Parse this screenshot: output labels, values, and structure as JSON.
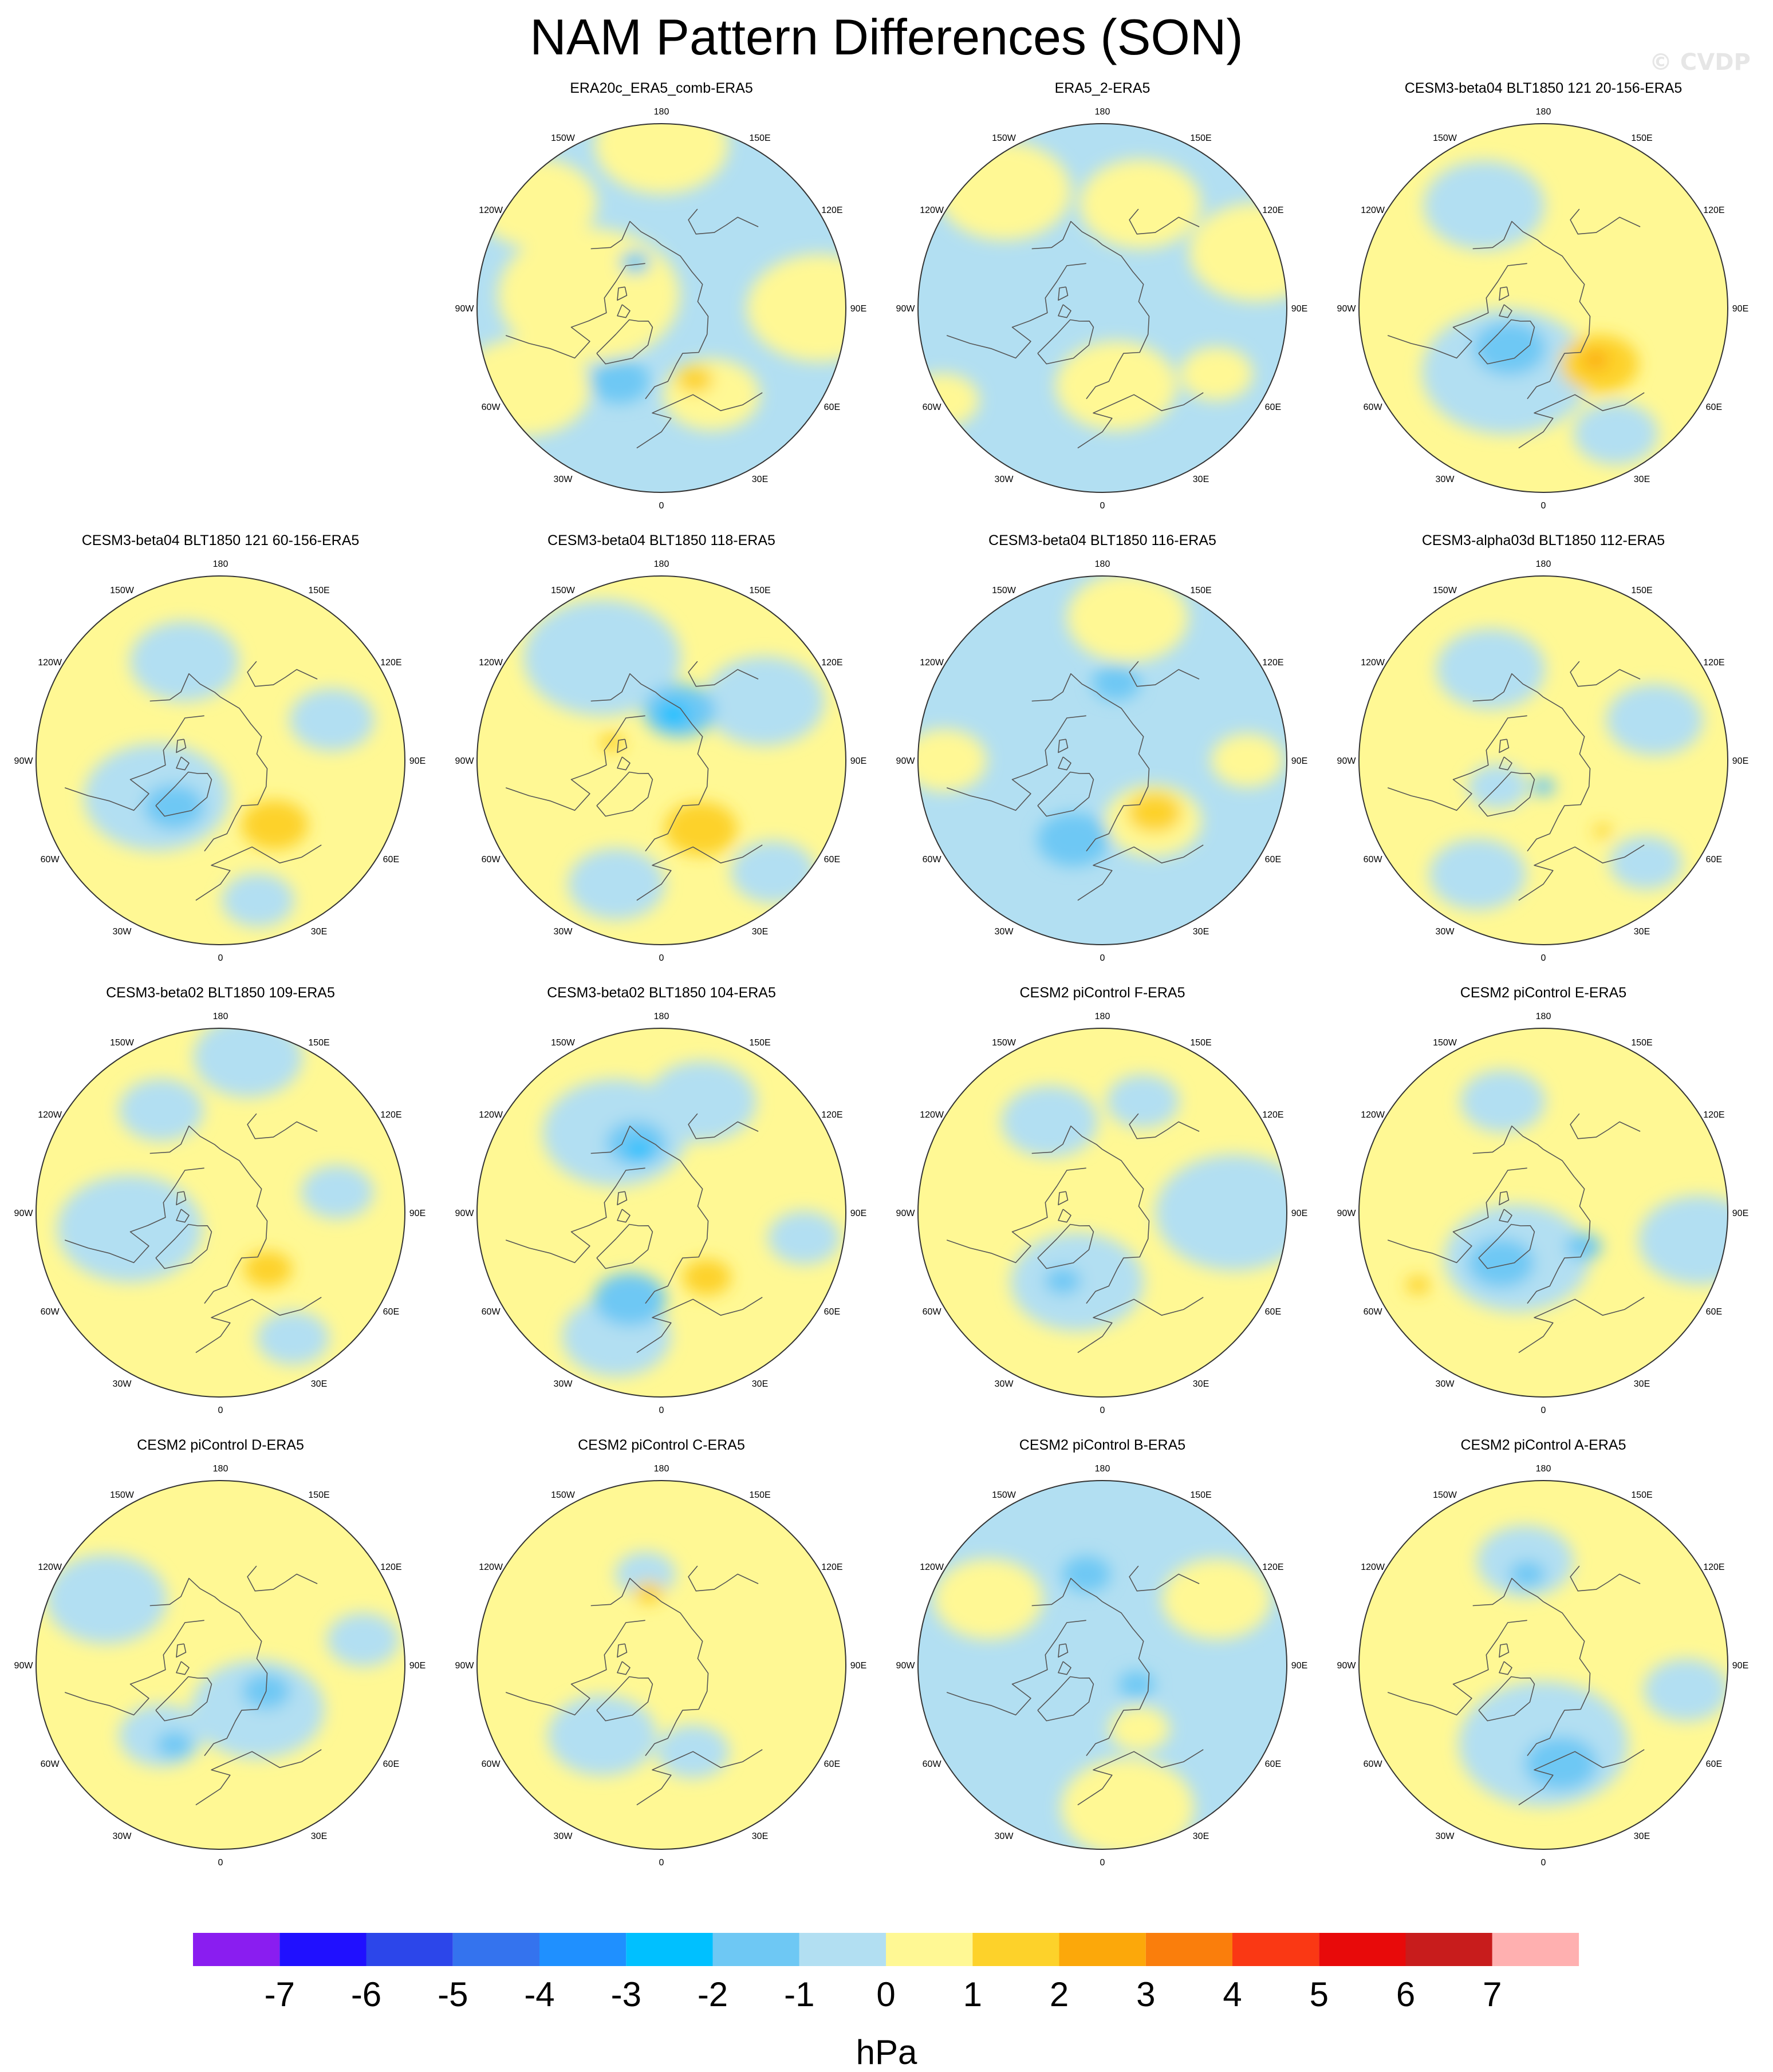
{
  "title": "NAM Pattern Differences (SON)",
  "watermark": "© CVDP",
  "panels": [
    {
      "title": "ERA20c_ERA5_comb-ERA5",
      "base": "blue",
      "blobs": [
        {
          "c": "yellow",
          "lon": -100,
          "lat": 62,
          "r": 30
        },
        {
          "c": "yellow",
          "lon": -60,
          "lat": 30,
          "r": 22
        },
        {
          "c": "yellow",
          "lon": -130,
          "lat": 28,
          "r": 20
        },
        {
          "c": "yellow",
          "lon": 180,
          "lat": 28,
          "r": 22
        },
        {
          "c": "yellow",
          "lon": 90,
          "lat": 30,
          "r": 24
        },
        {
          "c": "yellow",
          "lon": 30,
          "lat": 52,
          "r": 16
        },
        {
          "c": "orange",
          "lon": 25,
          "lat": 60,
          "r": 6
        },
        {
          "c": "mid",
          "lon": -30,
          "lat": 58,
          "r": 10
        },
        {
          "c": "mid",
          "lon": -150,
          "lat": 70,
          "r": 5
        }
      ]
    },
    {
      "title": "ERA5_2-ERA5",
      "base": "blue",
      "blobs": [
        {
          "c": "yellow",
          "lon": -140,
          "lat": 32,
          "r": 22
        },
        {
          "c": "yellow",
          "lon": 160,
          "lat": 48,
          "r": 20
        },
        {
          "c": "yellow",
          "lon": 10,
          "lat": 60,
          "r": 20
        },
        {
          "c": "yellow",
          "lon": 110,
          "lat": 28,
          "r": 22
        },
        {
          "c": "yellow",
          "lon": -60,
          "lat": 20,
          "r": 12
        },
        {
          "c": "yellow",
          "lon": 60,
          "lat": 40,
          "r": 12
        }
      ]
    },
    {
      "title": "CESM3-beta04 BLT1850 121 20-156-ERA5",
      "base": "yellow",
      "blobs": [
        {
          "c": "blue",
          "lon": -30,
          "lat": 62,
          "r": 28
        },
        {
          "c": "blue",
          "lon": -150,
          "lat": 45,
          "r": 20
        },
        {
          "c": "blue",
          "lon": 30,
          "lat": 35,
          "r": 14
        },
        {
          "c": "mid",
          "lon": -40,
          "lat": 70,
          "r": 12
        },
        {
          "c": "orange",
          "lon": 45,
          "lat": 60,
          "r": 13
        },
        {
          "c": "deep",
          "lon": 45,
          "lat": 62,
          "r": 4
        }
      ]
    },
    {
      "title": "CESM3-beta04 BLT1850 121 60-156-ERA5",
      "base": "yellow",
      "blobs": [
        {
          "c": "blue",
          "lon": -60,
          "lat": 62,
          "r": 24
        },
        {
          "c": "blue",
          "lon": -160,
          "lat": 50,
          "r": 18
        },
        {
          "c": "blue",
          "lon": 110,
          "lat": 45,
          "r": 14
        },
        {
          "c": "blue",
          "lon": 15,
          "lat": 35,
          "r": 12
        },
        {
          "c": "mid",
          "lon": -45,
          "lat": 65,
          "r": 10
        },
        {
          "c": "orange",
          "lon": 40,
          "lat": 58,
          "r": 11
        }
      ]
    },
    {
      "title": "CESM3-beta04 BLT1850 118-ERA5",
      "base": "yellow",
      "blobs": [
        {
          "c": "blue",
          "lon": -150,
          "lat": 45,
          "r": 26
        },
        {
          "c": "blue",
          "lon": 120,
          "lat": 45,
          "r": 20
        },
        {
          "c": "blue",
          "lon": -20,
          "lat": 40,
          "r": 16
        },
        {
          "c": "blue",
          "lon": 45,
          "lat": 30,
          "r": 14
        },
        {
          "c": "mid",
          "lon": 160,
          "lat": 70,
          "r": 12
        },
        {
          "c": "cyan",
          "lon": 165,
          "lat": 72,
          "r": 5
        },
        {
          "c": "orange",
          "lon": 30,
          "lat": 60,
          "r": 12
        },
        {
          "c": "orange",
          "lon": -110,
          "lat": 70,
          "r": 4
        }
      ]
    },
    {
      "title": "CESM3-beta04 BLT1850 116-ERA5",
      "base": "blue",
      "blobs": [
        {
          "c": "yellow",
          "lon": 170,
          "lat": 35,
          "r": 20
        },
        {
          "c": "yellow",
          "lon": 40,
          "lat": 60,
          "r": 16
        },
        {
          "c": "yellow",
          "lon": -90,
          "lat": 30,
          "r": 14
        },
        {
          "c": "yellow",
          "lon": 90,
          "lat": 35,
          "r": 12
        },
        {
          "c": "orange",
          "lon": 45,
          "lat": 62,
          "r": 9
        },
        {
          "c": "mid",
          "lon": -20,
          "lat": 58,
          "r": 12
        },
        {
          "c": "mid",
          "lon": 170,
          "lat": 60,
          "r": 8
        }
      ]
    },
    {
      "title": "CESM3-alpha03d BLT1850 112-ERA5",
      "base": "yellow",
      "blobs": [
        {
          "c": "blue",
          "lon": -150,
          "lat": 50,
          "r": 18
        },
        {
          "c": "blue",
          "lon": 110,
          "lat": 45,
          "r": 16
        },
        {
          "c": "blue",
          "lon": -30,
          "lat": 40,
          "r": 16
        },
        {
          "c": "blue",
          "lon": 45,
          "lat": 35,
          "r": 12
        },
        {
          "c": "blue",
          "lon": -60,
          "lat": 70,
          "r": 10
        },
        {
          "c": "mid",
          "lon": 0,
          "lat": 80,
          "r": 4
        },
        {
          "c": "orange",
          "lon": 40,
          "lat": 55,
          "r": 3
        }
      ]
    },
    {
      "title": "CESM3-beta02 BLT1850 109-ERA5",
      "base": "yellow",
      "blobs": [
        {
          "c": "blue",
          "lon": -80,
          "lat": 55,
          "r": 24
        },
        {
          "c": "blue",
          "lon": 170,
          "lat": 30,
          "r": 18
        },
        {
          "c": "blue",
          "lon": -150,
          "lat": 45,
          "r": 14
        },
        {
          "c": "blue",
          "lon": 30,
          "lat": 35,
          "r": 12
        },
        {
          "c": "blue",
          "lon": 100,
          "lat": 45,
          "r": 12
        },
        {
          "c": "orange",
          "lon": 40,
          "lat": 62,
          "r": 8
        }
      ]
    },
    {
      "title": "CESM3-beta02 BLT1850 104-ERA5",
      "base": "yellow",
      "blobs": [
        {
          "c": "blue",
          "lon": -150,
          "lat": 55,
          "r": 24
        },
        {
          "c": "blue",
          "lon": 160,
          "lat": 45,
          "r": 18
        },
        {
          "c": "blue",
          "lon": -20,
          "lat": 40,
          "r": 18
        },
        {
          "c": "blue",
          "lon": 80,
          "lat": 35,
          "r": 12
        },
        {
          "c": "mid",
          "lon": -160,
          "lat": 62,
          "r": 10
        },
        {
          "c": "cyan",
          "lon": -160,
          "lat": 65,
          "r": 4
        },
        {
          "c": "mid",
          "lon": -20,
          "lat": 55,
          "r": 12
        },
        {
          "c": "orange",
          "lon": 35,
          "lat": 60,
          "r": 8
        }
      ]
    },
    {
      "title": "CESM2 piControl F-ERA5",
      "base": "yellow",
      "blobs": [
        {
          "c": "blue",
          "lon": -20,
          "lat": 62,
          "r": 22
        },
        {
          "c": "blue",
          "lon": 90,
          "lat": 40,
          "r": 26
        },
        {
          "c": "blue",
          "lon": -150,
          "lat": 50,
          "r": 16
        },
        {
          "c": "blue",
          "lon": 160,
          "lat": 45,
          "r": 12
        },
        {
          "c": "mid",
          "lon": -30,
          "lat": 60,
          "r": 6
        }
      ]
    },
    {
      "title": "CESM2 piControl E-ERA5",
      "base": "yellow",
      "blobs": [
        {
          "c": "blue",
          "lon": -30,
          "lat": 70,
          "r": 24
        },
        {
          "c": "blue",
          "lon": 80,
          "lat": 30,
          "r": 20
        },
        {
          "c": "blue",
          "lon": -160,
          "lat": 45,
          "r": 14
        },
        {
          "c": "mid",
          "lon": -40,
          "lat": 65,
          "r": 11
        },
        {
          "c": "mid",
          "lon": 50,
          "lat": 70,
          "r": 6
        },
        {
          "c": "orange",
          "lon": -60,
          "lat": 35,
          "r": 4
        }
      ]
    },
    {
      "title": "CESM2 piControl D-ERA5",
      "base": "yellow",
      "blobs": [
        {
          "c": "blue",
          "lon": 40,
          "lat": 68,
          "r": 22
        },
        {
          "c": "blue",
          "lon": -120,
          "lat": 40,
          "r": 20
        },
        {
          "c": "blue",
          "lon": -40,
          "lat": 55,
          "r": 14
        },
        {
          "c": "blue",
          "lon": 100,
          "lat": 35,
          "r": 12
        },
        {
          "c": "mid",
          "lon": 60,
          "lat": 70,
          "r": 8
        },
        {
          "c": "mid",
          "lon": -30,
          "lat": 55,
          "r": 6
        }
      ]
    },
    {
      "title": "CESM2 piControl C-ERA5",
      "base": "yellow",
      "blobs": [
        {
          "c": "blue",
          "lon": -40,
          "lat": 55,
          "r": 18
        },
        {
          "c": "blue",
          "lon": 20,
          "lat": 55,
          "r": 12
        },
        {
          "c": "blue",
          "lon": -170,
          "lat": 55,
          "r": 10
        },
        {
          "c": "orange",
          "lon": -170,
          "lat": 62,
          "r": 5
        }
      ]
    },
    {
      "title": "CESM2 piControl B-ERA5",
      "base": "blue",
      "blobs": [
        {
          "c": "yellow",
          "lon": -120,
          "lat": 40,
          "r": 18
        },
        {
          "c": "yellow",
          "lon": 120,
          "lat": 40,
          "r": 18
        },
        {
          "c": "yellow",
          "lon": 10,
          "lat": 35,
          "r": 22
        },
        {
          "c": "yellow",
          "lon": 30,
          "lat": 62,
          "r": 10
        },
        {
          "c": "mid",
          "lon": -170,
          "lat": 55,
          "r": 8
        },
        {
          "c": "mid",
          "lon": 60,
          "lat": 75,
          "r": 6
        }
      ]
    },
    {
      "title": "CESM2 piControl A-ERA5",
      "base": "yellow",
      "blobs": [
        {
          "c": "blue",
          "lon": 0,
          "lat": 60,
          "r": 28
        },
        {
          "c": "blue",
          "lon": -170,
          "lat": 50,
          "r": 16
        },
        {
          "c": "blue",
          "lon": 80,
          "lat": 35,
          "r": 14
        },
        {
          "c": "mid",
          "lon": 10,
          "lat": 52,
          "r": 12
        },
        {
          "c": "mid",
          "lon": -170,
          "lat": 55,
          "r": 6
        }
      ]
    }
  ],
  "map_labels": [
    "180",
    "150E",
    "120E",
    "90E",
    "60E",
    "30E",
    "0",
    "30W",
    "60W",
    "90W",
    "120W",
    "150W"
  ],
  "legend": {
    "ticks": [
      "-7",
      "-6",
      "-5",
      "-4",
      "-3",
      "-2",
      "-1",
      "0",
      "1",
      "2",
      "3",
      "4",
      "5",
      "6",
      "7"
    ],
    "unit": "hPa",
    "colors": [
      "#8a1df0",
      "#2010ff",
      "#2c46ea",
      "#3473ee",
      "#1f90ff",
      "#00c0ff",
      "#6ec8f4",
      "#b2dff2",
      "#fff894",
      "#fdd22a",
      "#fca80a",
      "#fa7e0c",
      "#fa3814",
      "#e80a0a",
      "#c81c1c",
      "#ffb0b0"
    ]
  },
  "palette": {
    "blue": "#b2dff2",
    "yellow": "#fff894",
    "mid": "#6ec8f4",
    "cyan": "#00c0ff",
    "orange": "#fdd22a",
    "deep": "#fca80a"
  }
}
